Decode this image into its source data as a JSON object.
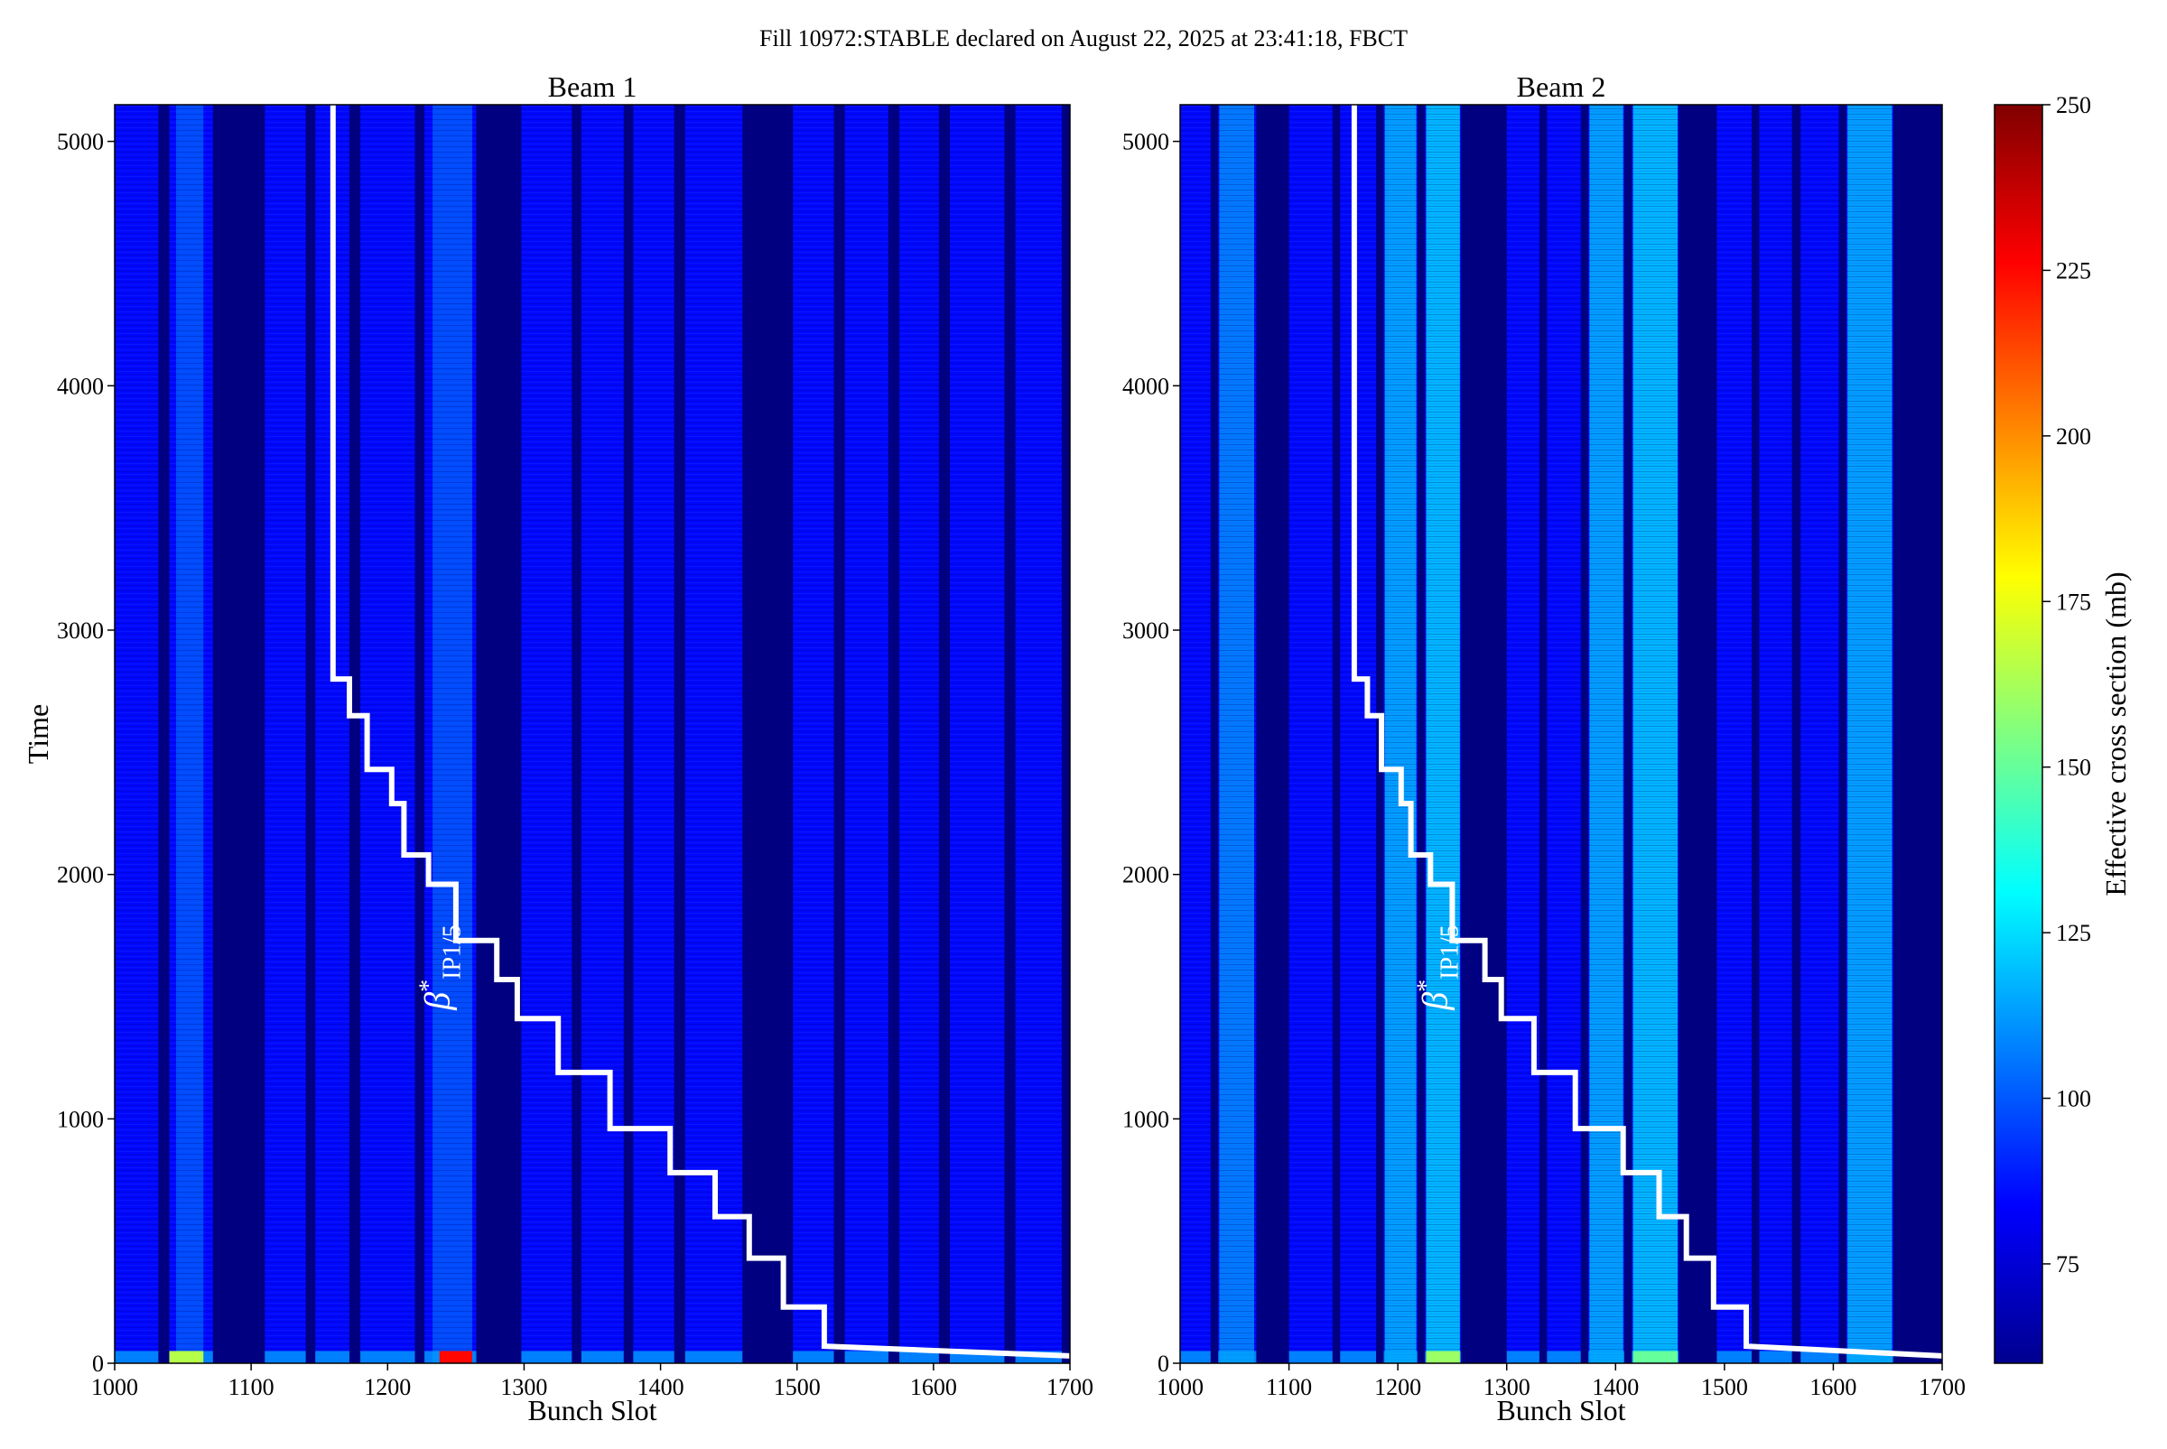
{
  "figure": {
    "title": "Fill 10972:STABLE declared on August 22, 2025 at 23:41:18, FBCT"
  },
  "colorbar": {
    "label": "Effective cross section (mb)",
    "range": [
      60,
      250
    ],
    "ticks": [
      75,
      100,
      125,
      150,
      175,
      200,
      225,
      250
    ],
    "colormap": [
      "#00008f",
      "#0000ff",
      "#0080ff",
      "#00ffff",
      "#80ff80",
      "#ffff00",
      "#ff8000",
      "#ff0000",
      "#800000"
    ]
  },
  "colors": {
    "empty_slot": "#000080",
    "filled_slot": "#1a2fe8",
    "annotation_line": "#ffffff"
  },
  "chart_data": [
    {
      "type": "heatmap",
      "title": "Beam 1",
      "xlabel": "Bunch Slot",
      "ylabel": "Time",
      "xlim": [
        1000,
        1700
      ],
      "ylim": [
        0,
        5150
      ],
      "xticks": [
        1000,
        1100,
        1200,
        1300,
        1400,
        1500,
        1600,
        1700
      ],
      "yticks": [
        0,
        1000,
        2000,
        3000,
        4000,
        5000
      ],
      "z_units": "mb",
      "gaps": [
        [
          1032,
          1040
        ],
        [
          1072,
          1110
        ],
        [
          1140,
          1147
        ],
        [
          1172,
          1180
        ],
        [
          1220,
          1227
        ],
        [
          1265,
          1298
        ],
        [
          1335,
          1342
        ],
        [
          1373,
          1380
        ],
        [
          1410,
          1418
        ],
        [
          1460,
          1497
        ],
        [
          1527,
          1535
        ],
        [
          1567,
          1575
        ],
        [
          1604,
          1612
        ],
        [
          1652,
          1660
        ],
        [
          1694,
          1702
        ]
      ],
      "bright_bands": [
        {
          "x": [
            1045,
            1065
          ],
          "value": 100
        },
        {
          "x": [
            1233,
            1262
          ],
          "value": 100
        }
      ],
      "hot_spots": [
        {
          "x": [
            1040,
            1065
          ],
          "time": [
            0,
            50
          ],
          "value": 165
        },
        {
          "x": [
            1238,
            1262
          ],
          "time": [
            0,
            50
          ],
          "value": 225
        }
      ],
      "base_value": 85,
      "annotation": {
        "label_greek": "β",
        "label_sup": "*",
        "label_sub": "IP1/5",
        "steps": [
          [
            1160,
            5150
          ],
          [
            1160,
            2800
          ],
          [
            1172,
            2800
          ],
          [
            1172,
            2650
          ],
          [
            1185,
            2650
          ],
          [
            1185,
            2430
          ],
          [
            1203,
            2430
          ],
          [
            1203,
            2290
          ],
          [
            1212,
            2290
          ],
          [
            1212,
            2080
          ],
          [
            1230,
            2080
          ],
          [
            1230,
            1960
          ],
          [
            1250,
            1960
          ],
          [
            1250,
            1730
          ],
          [
            1280,
            1730
          ],
          [
            1280,
            1570
          ],
          [
            1295,
            1570
          ],
          [
            1295,
            1410
          ],
          [
            1325,
            1410
          ],
          [
            1325,
            1190
          ],
          [
            1363,
            1190
          ],
          [
            1363,
            960
          ],
          [
            1407,
            960
          ],
          [
            1407,
            780
          ],
          [
            1440,
            780
          ],
          [
            1440,
            600
          ],
          [
            1465,
            600
          ],
          [
            1465,
            430
          ],
          [
            1490,
            430
          ],
          [
            1490,
            230
          ],
          [
            1520,
            230
          ],
          [
            1520,
            70
          ],
          [
            1700,
            30
          ]
        ]
      }
    },
    {
      "type": "heatmap",
      "title": "Beam 2",
      "xlabel": "Bunch Slot",
      "ylabel": "",
      "xlim": [
        1000,
        1700
      ],
      "ylim": [
        0,
        5150
      ],
      "xticks": [
        1000,
        1100,
        1200,
        1300,
        1400,
        1500,
        1600,
        1700
      ],
      "yticks": [
        0,
        1000,
        2000,
        3000,
        4000,
        5000
      ],
      "z_units": "mb",
      "gaps": [
        [
          1028,
          1035
        ],
        [
          1070,
          1100
        ],
        [
          1140,
          1147
        ],
        [
          1180,
          1187
        ],
        [
          1218,
          1225
        ],
        [
          1258,
          1300
        ],
        [
          1330,
          1337
        ],
        [
          1368,
          1375
        ],
        [
          1408,
          1415
        ],
        [
          1458,
          1493
        ],
        [
          1525,
          1532
        ],
        [
          1562,
          1570
        ],
        [
          1605,
          1612
        ],
        [
          1655,
          1700
        ]
      ],
      "bright_bands": [
        {
          "x": [
            1036,
            1068
          ],
          "value": 110
        },
        {
          "x": [
            1188,
            1217
          ],
          "value": 118
        },
        {
          "x": [
            1226,
            1257
          ],
          "value": 123
        },
        {
          "x": [
            1376,
            1407
          ],
          "value": 118
        },
        {
          "x": [
            1416,
            1457
          ],
          "value": 123
        },
        {
          "x": [
            1613,
            1654
          ],
          "value": 118
        }
      ],
      "hot_spots": [
        {
          "x": [
            1226,
            1257
          ],
          "time": [
            0,
            50
          ],
          "value": 160
        },
        {
          "x": [
            1416,
            1457
          ],
          "time": [
            0,
            50
          ],
          "value": 150
        }
      ],
      "base_value": 85,
      "annotation": {
        "label_greek": "β",
        "label_sup": "*",
        "label_sub": "IP1/5",
        "steps": [
          [
            1160,
            5150
          ],
          [
            1160,
            2800
          ],
          [
            1172,
            2800
          ],
          [
            1172,
            2650
          ],
          [
            1185,
            2650
          ],
          [
            1185,
            2430
          ],
          [
            1203,
            2430
          ],
          [
            1203,
            2290
          ],
          [
            1212,
            2290
          ],
          [
            1212,
            2080
          ],
          [
            1230,
            2080
          ],
          [
            1230,
            1960
          ],
          [
            1250,
            1960
          ],
          [
            1250,
            1730
          ],
          [
            1280,
            1730
          ],
          [
            1280,
            1570
          ],
          [
            1295,
            1570
          ],
          [
            1295,
            1410
          ],
          [
            1325,
            1410
          ],
          [
            1325,
            1190
          ],
          [
            1363,
            1190
          ],
          [
            1363,
            960
          ],
          [
            1407,
            960
          ],
          [
            1407,
            780
          ],
          [
            1440,
            780
          ],
          [
            1440,
            600
          ],
          [
            1465,
            600
          ],
          [
            1465,
            430
          ],
          [
            1490,
            430
          ],
          [
            1490,
            230
          ],
          [
            1520,
            230
          ],
          [
            1520,
            70
          ],
          [
            1700,
            30
          ]
        ]
      }
    }
  ]
}
